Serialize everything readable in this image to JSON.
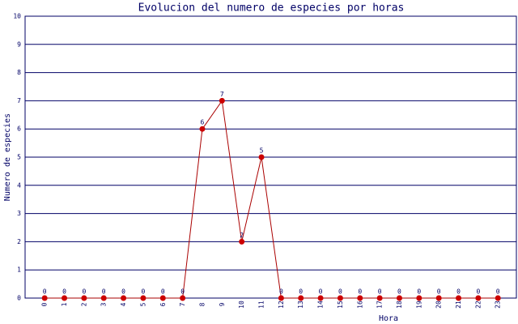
{
  "chart_data": {
    "type": "line",
    "title": "Evolucion del numero de especies por horas",
    "x_label": "Hora",
    "y_label": "Numero de especies",
    "categories": [
      "0",
      "1",
      "2",
      "3",
      "4",
      "5",
      "6",
      "7",
      "8",
      "9",
      "10",
      "11",
      "12",
      "13",
      "14",
      "15",
      "16",
      "17",
      "18",
      "19",
      "20",
      "21",
      "22",
      "23"
    ],
    "series": [
      {
        "name": "especies",
        "color": "#cc0000",
        "values": [
          0,
          0,
          0,
          0,
          0,
          0,
          0,
          0,
          6,
          7,
          2,
          5,
          0,
          0,
          0,
          0,
          0,
          0,
          0,
          0,
          0,
          0,
          0,
          0
        ]
      }
    ],
    "ylim": [
      0,
      10
    ],
    "yticks": [
      0,
      1,
      2,
      3,
      4,
      5,
      6,
      7,
      8,
      9,
      10
    ],
    "grid": true
  }
}
